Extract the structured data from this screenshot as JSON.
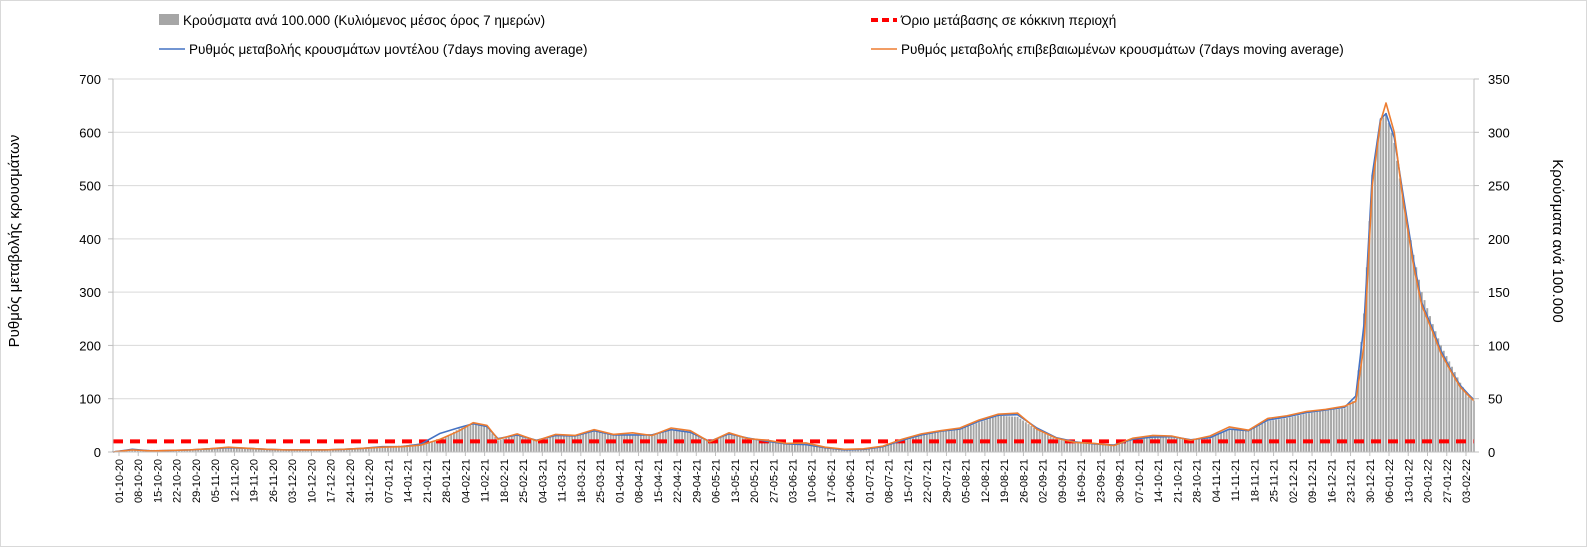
{
  "chart_data": {
    "type": "bar+line",
    "title": "",
    "ylabel": "Ρυθμός μεταβολής κρουσμάτων",
    "y2label": "Κρούσματα ανά 100.000",
    "ylim": [
      0,
      700
    ],
    "y2lim": [
      0,
      350
    ],
    "yticks": [
      "0",
      "100",
      "200",
      "300",
      "400",
      "500",
      "600",
      "700"
    ],
    "y2ticks": [
      "0",
      "50",
      "100",
      "150",
      "200",
      "250",
      "300",
      "350"
    ],
    "grid": true,
    "legend_position": "top",
    "x_start": "2020-10-01",
    "x_end": "2022-02-08",
    "xtick_labels": [
      "01-10-20",
      "08-10-20",
      "15-10-20",
      "22-10-20",
      "29-10-20",
      "05-11-20",
      "12-11-20",
      "19-11-20",
      "26-11-20",
      "03-12-20",
      "10-12-20",
      "17-12-20",
      "24-12-20",
      "31-12-20",
      "07-01-21",
      "14-01-21",
      "21-01-21",
      "28-01-21",
      "04-02-21",
      "11-02-21",
      "18-02-21",
      "25-02-21",
      "04-03-21",
      "11-03-21",
      "18-03-21",
      "25-03-21",
      "01-04-21",
      "08-04-21",
      "15-04-21",
      "22-04-21",
      "29-04-21",
      "06-05-21",
      "13-05-21",
      "20-05-21",
      "27-05-21",
      "03-06-21",
      "10-06-21",
      "17-06-21",
      "24-06-21",
      "01-07-21",
      "08-07-21",
      "15-07-21",
      "22-07-21",
      "29-07-21",
      "05-08-21",
      "12-08-21",
      "19-08-21",
      "26-08-21",
      "02-09-21",
      "09-09-21",
      "16-09-21",
      "23-09-21",
      "30-09-21",
      "07-10-21",
      "14-10-21",
      "21-10-21",
      "28-10-21",
      "04-11-21",
      "11-11-21",
      "18-11-21",
      "25-11-21",
      "02-12-21",
      "09-12-21",
      "16-12-21",
      "23-12-21",
      "30-12-21",
      "06-01-22",
      "13-01-22",
      "20-01-22",
      "27-01-22",
      "03-02-22"
    ],
    "series": [
      {
        "name": "Κρούσματα ανά 100.000 (Κυλιόμενος μέσος όρος 7 ημερών)",
        "type": "bar",
        "axis": "right",
        "color": "#a6a6a6",
        "points": [
          [
            "2020-10-01",
            1
          ],
          [
            "2020-10-08",
            2.5
          ],
          [
            "2020-10-15",
            2
          ],
          [
            "2020-10-22",
            2
          ],
          [
            "2020-10-29",
            2.5
          ],
          [
            "2020-11-05",
            3.5
          ],
          [
            "2020-11-12",
            4.5
          ],
          [
            "2020-11-19",
            4
          ],
          [
            "2020-11-26",
            3
          ],
          [
            "2020-12-03",
            2.5
          ],
          [
            "2020-12-10",
            2.5
          ],
          [
            "2020-12-17",
            2.5
          ],
          [
            "2020-12-24",
            3
          ],
          [
            "2020-12-31",
            3.5
          ],
          [
            "2021-01-07",
            5
          ],
          [
            "2021-01-14",
            6
          ],
          [
            "2021-01-21",
            8
          ],
          [
            "2021-01-28",
            11
          ],
          [
            "2021-02-04",
            22
          ],
          [
            "2021-02-09",
            26
          ],
          [
            "2021-02-14",
            24
          ],
          [
            "2021-02-18",
            11
          ],
          [
            "2021-02-25",
            16
          ],
          [
            "2021-03-04",
            11
          ],
          [
            "2021-03-11",
            16
          ],
          [
            "2021-03-18",
            16
          ],
          [
            "2021-03-25",
            20
          ],
          [
            "2021-04-01",
            16
          ],
          [
            "2021-04-08",
            16
          ],
          [
            "2021-04-15",
            16
          ],
          [
            "2021-04-22",
            21
          ],
          [
            "2021-04-29",
            18
          ],
          [
            "2021-05-06",
            10
          ],
          [
            "2021-05-13",
            17
          ],
          [
            "2021-05-20",
            13
          ],
          [
            "2021-05-27",
            10
          ],
          [
            "2021-06-03",
            8
          ],
          [
            "2021-06-10",
            7
          ],
          [
            "2021-06-17",
            4
          ],
          [
            "2021-06-24",
            2
          ],
          [
            "2021-07-01",
            3
          ],
          [
            "2021-07-08",
            5
          ],
          [
            "2021-07-15",
            11
          ],
          [
            "2021-07-22",
            16
          ],
          [
            "2021-07-29",
            19
          ],
          [
            "2021-08-05",
            21
          ],
          [
            "2021-08-12",
            28
          ],
          [
            "2021-08-19",
            34
          ],
          [
            "2021-08-26",
            33
          ],
          [
            "2021-09-02",
            21
          ],
          [
            "2021-09-09",
            12
          ],
          [
            "2021-09-16",
            9
          ],
          [
            "2021-09-23",
            7
          ],
          [
            "2021-09-30",
            6
          ],
          [
            "2021-10-07",
            12
          ],
          [
            "2021-10-14",
            14
          ],
          [
            "2021-10-21",
            14
          ],
          [
            "2021-10-28",
            11
          ],
          [
            "2021-11-04",
            13
          ],
          [
            "2021-11-11",
            21
          ],
          [
            "2021-11-18",
            20
          ],
          [
            "2021-11-25",
            29
          ],
          [
            "2021-12-02",
            32
          ],
          [
            "2021-12-09",
            36
          ],
          [
            "2021-12-16",
            39
          ],
          [
            "2021-12-23",
            41
          ],
          [
            "2021-12-27",
            50
          ],
          [
            "2021-12-30",
            130
          ],
          [
            "2022-01-02",
            260
          ],
          [
            "2022-01-05",
            310
          ],
          [
            "2022-01-07",
            318
          ],
          [
            "2022-01-10",
            290
          ],
          [
            "2022-01-13",
            240
          ],
          [
            "2022-01-17",
            185
          ],
          [
            "2022-01-20",
            150
          ],
          [
            "2022-01-24",
            120
          ],
          [
            "2022-01-27",
            100
          ],
          [
            "2022-01-31",
            80
          ],
          [
            "2022-02-03",
            65
          ],
          [
            "2022-02-06",
            52
          ],
          [
            "2022-02-08",
            48
          ]
        ]
      },
      {
        "name": "Όριο μετάβασης σε κόκκινη περιοχή",
        "type": "line",
        "axis": "left",
        "color": "#ff0000",
        "dashed": true,
        "points": [
          [
            "2020-10-01",
            20
          ],
          [
            "2022-02-08",
            20
          ]
        ]
      },
      {
        "name": "Ρυθμός μεταβολής κρουσμάτων μοντέλου (7days moving average)",
        "type": "line",
        "axis": "left",
        "color": "#4472c4",
        "points": [
          [
            "2020-10-01",
            0
          ],
          [
            "2020-10-08",
            5
          ],
          [
            "2020-10-15",
            2
          ],
          [
            "2020-10-22",
            3
          ],
          [
            "2020-10-29",
            4
          ],
          [
            "2020-11-05",
            6
          ],
          [
            "2020-11-12",
            8
          ],
          [
            "2020-11-19",
            7
          ],
          [
            "2020-11-26",
            5
          ],
          [
            "2020-12-03",
            4
          ],
          [
            "2020-12-10",
            4
          ],
          [
            "2020-12-17",
            4
          ],
          [
            "2020-12-24",
            5
          ],
          [
            "2020-12-31",
            7
          ],
          [
            "2021-01-07",
            10
          ],
          [
            "2021-01-14",
            10
          ],
          [
            "2021-01-21",
            15
          ],
          [
            "2021-01-28",
            35
          ],
          [
            "2021-02-04",
            46
          ],
          [
            "2021-02-09",
            53
          ],
          [
            "2021-02-14",
            48
          ],
          [
            "2021-02-18",
            25
          ],
          [
            "2021-02-25",
            32
          ],
          [
            "2021-03-04",
            22
          ],
          [
            "2021-03-11",
            31
          ],
          [
            "2021-03-18",
            30
          ],
          [
            "2021-03-25",
            40
          ],
          [
            "2021-04-01",
            32
          ],
          [
            "2021-04-08",
            32
          ],
          [
            "2021-04-15",
            32
          ],
          [
            "2021-04-22",
            42
          ],
          [
            "2021-04-29",
            37
          ],
          [
            "2021-05-06",
            20
          ],
          [
            "2021-05-13",
            34
          ],
          [
            "2021-05-20",
            26
          ],
          [
            "2021-05-27",
            20
          ],
          [
            "2021-06-03",
            15
          ],
          [
            "2021-06-10",
            14
          ],
          [
            "2021-06-17",
            8
          ],
          [
            "2021-06-24",
            4
          ],
          [
            "2021-07-01",
            5
          ],
          [
            "2021-07-08",
            10
          ],
          [
            "2021-07-15",
            22
          ],
          [
            "2021-07-22",
            32
          ],
          [
            "2021-07-29",
            39
          ],
          [
            "2021-08-05",
            43
          ],
          [
            "2021-08-12",
            58
          ],
          [
            "2021-08-19",
            69
          ],
          [
            "2021-08-26",
            70
          ],
          [
            "2021-09-02",
            45
          ],
          [
            "2021-09-09",
            27
          ],
          [
            "2021-09-16",
            19
          ],
          [
            "2021-09-23",
            15
          ],
          [
            "2021-09-30",
            13
          ],
          [
            "2021-10-07",
            24
          ],
          [
            "2021-10-14",
            28
          ],
          [
            "2021-10-21",
            29
          ],
          [
            "2021-10-28",
            23
          ],
          [
            "2021-11-04",
            27
          ],
          [
            "2021-11-11",
            43
          ],
          [
            "2021-11-18",
            40
          ],
          [
            "2021-11-25",
            60
          ],
          [
            "2021-12-02",
            66
          ],
          [
            "2021-12-09",
            74
          ],
          [
            "2021-12-16",
            79
          ],
          [
            "2021-12-23",
            84
          ],
          [
            "2021-12-27",
            105
          ],
          [
            "2021-12-30",
            240
          ],
          [
            "2022-01-02",
            520
          ],
          [
            "2022-01-05",
            625
          ],
          [
            "2022-01-07",
            635
          ],
          [
            "2022-01-10",
            590
          ],
          [
            "2022-01-13",
            490
          ],
          [
            "2022-01-17",
            360
          ],
          [
            "2022-01-20",
            280
          ],
          [
            "2022-01-24",
            230
          ],
          [
            "2022-01-27",
            190
          ],
          [
            "2022-01-31",
            150
          ],
          [
            "2022-02-03",
            125
          ],
          [
            "2022-02-06",
            108
          ],
          [
            "2022-02-08",
            98
          ]
        ]
      },
      {
        "name": "Ρυθμός μεταβολής επιβεβαιωμένων κρουσμάτων (7days moving average)",
        "type": "line",
        "axis": "left",
        "color": "#ed7d31",
        "points": [
          [
            "2020-10-01",
            0
          ],
          [
            "2020-10-08",
            4
          ],
          [
            "2020-10-15",
            2
          ],
          [
            "2020-10-22",
            3
          ],
          [
            "2020-10-29",
            4
          ],
          [
            "2020-11-05",
            6
          ],
          [
            "2020-11-12",
            9
          ],
          [
            "2020-11-19",
            7
          ],
          [
            "2020-11-26",
            5
          ],
          [
            "2020-12-03",
            4
          ],
          [
            "2020-12-10",
            4
          ],
          [
            "2020-12-17",
            4
          ],
          [
            "2020-12-24",
            5
          ],
          [
            "2020-12-31",
            7
          ],
          [
            "2021-01-07",
            9
          ],
          [
            "2021-01-14",
            10
          ],
          [
            "2021-01-21",
            13
          ],
          [
            "2021-01-28",
            24
          ],
          [
            "2021-02-04",
            40
          ],
          [
            "2021-02-09",
            55
          ],
          [
            "2021-02-14",
            50
          ],
          [
            "2021-02-18",
            24
          ],
          [
            "2021-02-25",
            34
          ],
          [
            "2021-03-04",
            21
          ],
          [
            "2021-03-11",
            33
          ],
          [
            "2021-03-18",
            31
          ],
          [
            "2021-03-25",
            42
          ],
          [
            "2021-04-01",
            33
          ],
          [
            "2021-04-08",
            36
          ],
          [
            "2021-04-15",
            31
          ],
          [
            "2021-04-22",
            45
          ],
          [
            "2021-04-29",
            40
          ],
          [
            "2021-05-06",
            19
          ],
          [
            "2021-05-13",
            36
          ],
          [
            "2021-05-20",
            25
          ],
          [
            "2021-05-27",
            22
          ],
          [
            "2021-06-03",
            16
          ],
          [
            "2021-06-10",
            17
          ],
          [
            "2021-06-17",
            9
          ],
          [
            "2021-06-24",
            5
          ],
          [
            "2021-07-01",
            6
          ],
          [
            "2021-07-08",
            11
          ],
          [
            "2021-07-15",
            24
          ],
          [
            "2021-07-22",
            34
          ],
          [
            "2021-07-29",
            40
          ],
          [
            "2021-08-05",
            45
          ],
          [
            "2021-08-12",
            60
          ],
          [
            "2021-08-19",
            71
          ],
          [
            "2021-08-26",
            73
          ],
          [
            "2021-09-02",
            43
          ],
          [
            "2021-09-09",
            26
          ],
          [
            "2021-09-16",
            18
          ],
          [
            "2021-09-23",
            16
          ],
          [
            "2021-09-30",
            12
          ],
          [
            "2021-10-07",
            26
          ],
          [
            "2021-10-14",
            31
          ],
          [
            "2021-10-21",
            30
          ],
          [
            "2021-10-28",
            22
          ],
          [
            "2021-11-04",
            30
          ],
          [
            "2021-11-11",
            47
          ],
          [
            "2021-11-18",
            41
          ],
          [
            "2021-11-25",
            63
          ],
          [
            "2021-12-02",
            68
          ],
          [
            "2021-12-09",
            76
          ],
          [
            "2021-12-16",
            80
          ],
          [
            "2021-12-23",
            86
          ],
          [
            "2021-12-27",
            95
          ],
          [
            "2021-12-30",
            200
          ],
          [
            "2022-01-02",
            500
          ],
          [
            "2022-01-05",
            620
          ],
          [
            "2022-01-07",
            655
          ],
          [
            "2022-01-10",
            600
          ],
          [
            "2022-01-13",
            480
          ],
          [
            "2022-01-17",
            350
          ],
          [
            "2022-01-20",
            275
          ],
          [
            "2022-01-24",
            225
          ],
          [
            "2022-01-27",
            185
          ],
          [
            "2022-01-31",
            148
          ],
          [
            "2022-02-03",
            122
          ],
          [
            "2022-02-06",
            106
          ],
          [
            "2022-02-08",
            96
          ]
        ]
      }
    ]
  }
}
